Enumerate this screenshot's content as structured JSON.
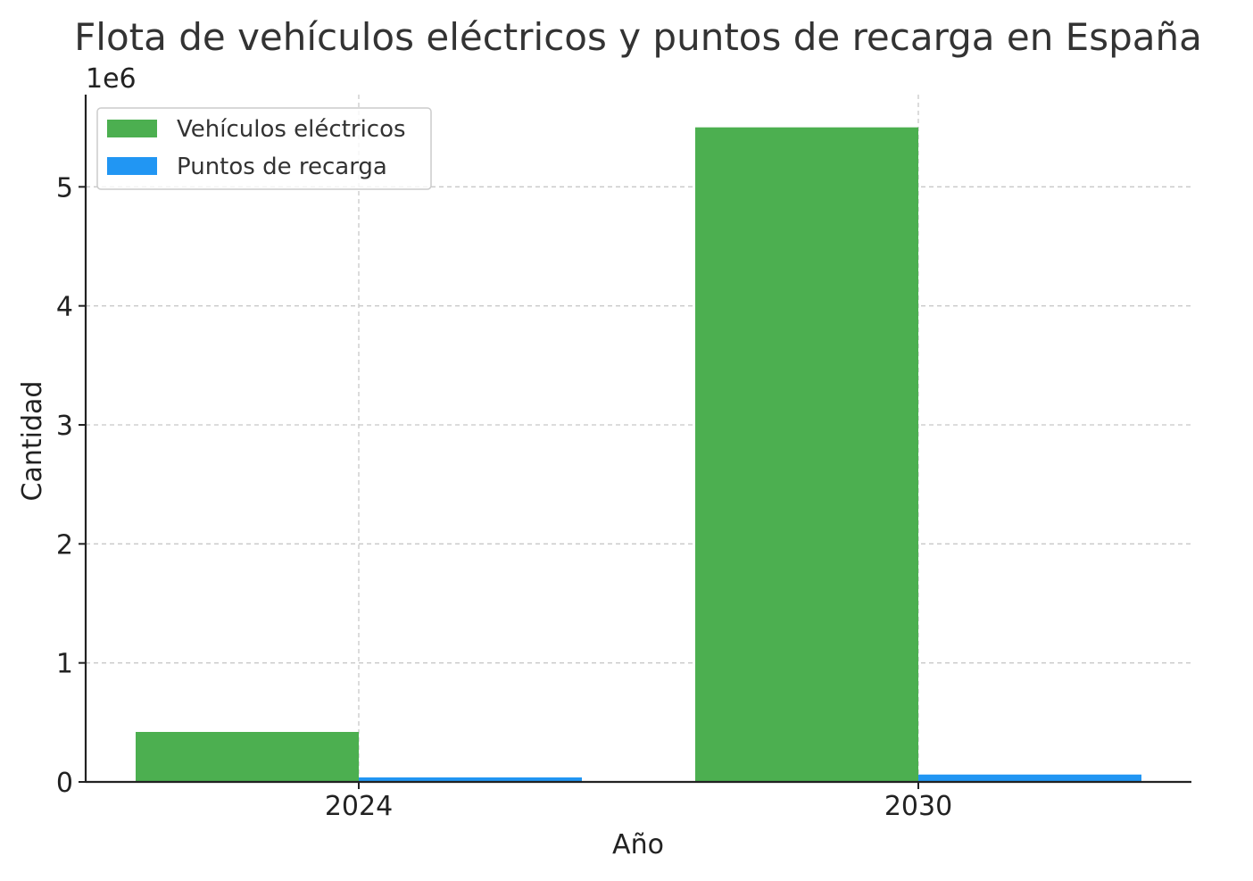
{
  "chart_data": {
    "type": "bar",
    "title": "Flota de vehículos eléctricos y puntos de recarga en España",
    "xlabel": "Año",
    "ylabel": "Cantidad",
    "y_offset_label": "1e6",
    "categories": [
      "2024",
      "2030"
    ],
    "series": [
      {
        "name": "Vehículos eléctricos",
        "color": "#4caf50",
        "values": [
          420000,
          5500000
        ]
      },
      {
        "name": "Puntos de recarga",
        "color": "#2196f3",
        "values": [
          38000,
          62000
        ]
      }
    ],
    "yticks": [
      0,
      1000000,
      2000000,
      3000000,
      4000000,
      5000000
    ],
    "ytick_labels": [
      "0",
      "1",
      "2",
      "3",
      "4",
      "5"
    ],
    "ylim": [
      0,
      5775000
    ],
    "grid": true,
    "legend_position": "top-left"
  }
}
